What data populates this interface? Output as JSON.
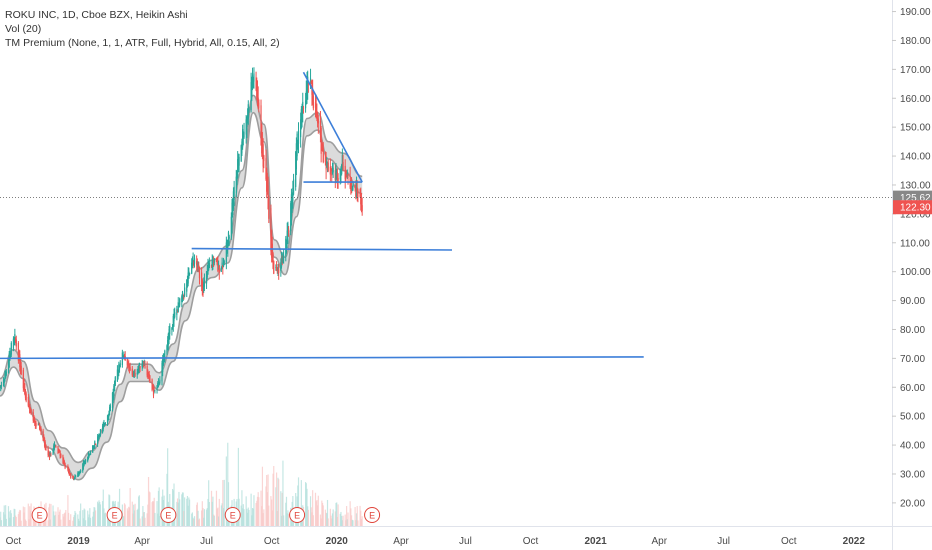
{
  "legend": {
    "line1": "ROKU INC, 1D, Cboe BZX, Heikin Ashi",
    "line2": "Vol (20)",
    "line3": "TM Premium (None, 1, 1, ATR, Full, Hybrid, All, 0.15, All, 2)"
  },
  "colors": {
    "up": "#26a69a",
    "down": "#ef5350",
    "trendline": "#3d7fd9",
    "band": "#9e9e9e",
    "price_tag_gray": "#888888",
    "price_tag_red": "#ef5350",
    "earnings": "#e0453b"
  },
  "earnings_marker": "E",
  "chart_data": {
    "type": "candlestick",
    "price_axis": {
      "ylim": [
        12,
        194
      ],
      "ticks": [
        20,
        30,
        40,
        50,
        60,
        70,
        80,
        90,
        100,
        110,
        120,
        130,
        140,
        150,
        160,
        170,
        180,
        190
      ],
      "tick_labels": [
        "20.00",
        "30.00",
        "40.00",
        "50.00",
        "60.00",
        "70.00",
        "80.00",
        "90.00",
        "100.00",
        "110.00",
        "120.00",
        "130.00",
        "140.00",
        "150.00",
        "160.00",
        "170.00",
        "180.00",
        "190.00"
      ]
    },
    "time_axis": {
      "start": "2018-09-12",
      "end": "2022-02-24",
      "ticks": [
        "2018-10-01",
        "2019-01-01",
        "2019-04-01",
        "2019-07-01",
        "2019-10-01",
        "2020-01-01",
        "2020-04-01",
        "2020-07-01",
        "2020-10-01",
        "2021-01-01",
        "2021-04-01",
        "2021-07-01",
        "2021-10-01",
        "2022-01-01"
      ],
      "tick_labels": [
        "Oct",
        "2019",
        "Apr",
        "Jul",
        "Oct",
        "2020",
        "Apr",
        "Jul",
        "Oct",
        "2021",
        "Apr",
        "Jul",
        "Oct",
        "2022"
      ],
      "bold": [
        false,
        true,
        false,
        false,
        false,
        true,
        false,
        false,
        false,
        true,
        false,
        false,
        false,
        true
      ]
    },
    "price_series": [
      [
        "2018-09-12",
        60
      ],
      [
        "2018-09-20",
        65
      ],
      [
        "2018-09-28",
        74
      ],
      [
        "2018-10-03",
        77
      ],
      [
        "2018-10-10",
        68
      ],
      [
        "2018-10-17",
        58
      ],
      [
        "2018-10-24",
        52
      ],
      [
        "2018-10-31",
        47
      ],
      [
        "2018-11-07",
        46
      ],
      [
        "2018-11-14",
        40
      ],
      [
        "2018-11-21",
        36
      ],
      [
        "2018-11-28",
        40
      ],
      [
        "2018-12-05",
        37
      ],
      [
        "2018-12-12",
        33
      ],
      [
        "2018-12-19",
        30
      ],
      [
        "2018-12-24",
        28
      ],
      [
        "2019-01-02",
        31
      ],
      [
        "2019-01-09",
        34
      ],
      [
        "2019-01-16",
        37
      ],
      [
        "2019-01-23",
        40
      ],
      [
        "2019-01-30",
        44
      ],
      [
        "2019-02-06",
        47
      ],
      [
        "2019-02-13",
        52
      ],
      [
        "2019-02-20",
        60
      ],
      [
        "2019-02-27",
        68
      ],
      [
        "2019-03-06",
        72
      ],
      [
        "2019-03-13",
        66
      ],
      [
        "2019-03-20",
        64
      ],
      [
        "2019-03-27",
        67
      ],
      [
        "2019-04-03",
        69
      ],
      [
        "2019-04-10",
        63
      ],
      [
        "2019-04-17",
        58
      ],
      [
        "2019-04-24",
        61
      ],
      [
        "2019-05-01",
        70
      ],
      [
        "2019-05-08",
        78
      ],
      [
        "2019-05-15",
        84
      ],
      [
        "2019-05-22",
        88
      ],
      [
        "2019-05-29",
        92
      ],
      [
        "2019-06-05",
        98
      ],
      [
        "2019-06-12",
        104
      ],
      [
        "2019-06-19",
        101
      ],
      [
        "2019-06-26",
        94
      ],
      [
        "2019-07-03",
        101
      ],
      [
        "2019-07-10",
        104
      ],
      [
        "2019-07-17",
        101
      ],
      [
        "2019-07-24",
        103
      ],
      [
        "2019-07-31",
        110
      ],
      [
        "2019-08-07",
        125
      ],
      [
        "2019-08-14",
        137
      ],
      [
        "2019-08-21",
        148
      ],
      [
        "2019-08-28",
        155
      ],
      [
        "2019-09-04",
        168
      ],
      [
        "2019-09-11",
        160
      ],
      [
        "2019-09-18",
        140
      ],
      [
        "2019-09-25",
        128
      ],
      [
        "2019-09-30",
        108
      ],
      [
        "2019-10-04",
        100
      ],
      [
        "2019-10-11",
        101
      ],
      [
        "2019-10-18",
        106
      ],
      [
        "2019-10-25",
        116
      ],
      [
        "2019-11-01",
        132
      ],
      [
        "2019-11-08",
        150
      ],
      [
        "2019-11-15",
        157
      ],
      [
        "2019-11-22",
        166
      ],
      [
        "2019-11-27",
        162
      ],
      [
        "2019-12-04",
        152
      ],
      [
        "2019-12-11",
        142
      ],
      [
        "2019-12-18",
        137
      ],
      [
        "2019-12-24",
        135
      ],
      [
        "2020-01-02",
        133
      ],
      [
        "2020-01-09",
        138
      ],
      [
        "2020-01-16",
        132
      ],
      [
        "2020-01-23",
        129
      ],
      [
        "2020-01-30",
        128
      ],
      [
        "2020-02-06",
        122
      ]
    ],
    "band_series": [
      [
        "2018-09-12",
        60
      ],
      [
        "2018-10-01",
        70
      ],
      [
        "2018-10-15",
        66
      ],
      [
        "2018-11-01",
        52
      ],
      [
        "2018-11-20",
        42
      ],
      [
        "2018-12-10",
        36
      ],
      [
        "2019-01-01",
        31
      ],
      [
        "2019-01-20",
        35
      ],
      [
        "2019-02-10",
        44
      ],
      [
        "2019-03-01",
        58
      ],
      [
        "2019-03-15",
        65
      ],
      [
        "2019-04-10",
        65
      ],
      [
        "2019-04-25",
        62
      ],
      [
        "2019-05-15",
        72
      ],
      [
        "2019-06-01",
        86
      ],
      [
        "2019-06-20",
        98
      ],
      [
        "2019-07-10",
        101
      ],
      [
        "2019-07-31",
        106
      ],
      [
        "2019-08-20",
        132
      ],
      [
        "2019-09-05",
        158
      ],
      [
        "2019-09-20",
        148
      ],
      [
        "2019-10-05",
        108
      ],
      [
        "2019-10-20",
        102
      ],
      [
        "2019-11-05",
        122
      ],
      [
        "2019-11-20",
        150
      ],
      [
        "2019-12-05",
        152
      ],
      [
        "2019-12-20",
        142
      ],
      [
        "2020-01-10",
        138
      ],
      [
        "2020-02-06",
        130
      ]
    ],
    "band_width": 3,
    "volume_series": [
      [
        "2018-10-10",
        0.14
      ],
      [
        "2018-11-07",
        0.18
      ],
      [
        "2018-12-10",
        0.12
      ],
      [
        "2019-01-10",
        0.13
      ],
      [
        "2019-02-14",
        0.22
      ],
      [
        "2019-03-10",
        0.16
      ],
      [
        "2019-05-09",
        0.32
      ],
      [
        "2019-06-20",
        0.15
      ],
      [
        "2019-08-07",
        0.38
      ],
      [
        "2019-08-28",
        0.18
      ],
      [
        "2019-10-01",
        0.44
      ],
      [
        "2019-10-18",
        0.28
      ],
      [
        "2019-11-07",
        0.36
      ],
      [
        "2019-12-10",
        0.2
      ],
      [
        "2020-01-15",
        0.17
      ]
    ],
    "volume_scale_max": 1,
    "earnings_dates": [
      "2018-11-07",
      "2019-02-21",
      "2019-05-08",
      "2019-08-07",
      "2019-11-06",
      "2020-02-20"
    ],
    "trendlines": [
      {
        "from": [
          "2018-09-12",
          70
        ],
        "to": [
          "2021-03-10",
          70.5
        ]
      },
      {
        "from": [
          "2019-06-10",
          108
        ],
        "to": [
          "2020-06-12",
          107.5
        ]
      },
      {
        "from": [
          "2019-11-15",
          131
        ],
        "to": [
          "2020-02-06",
          131
        ]
      },
      {
        "from": [
          "2019-11-15",
          169
        ],
        "to": [
          "2020-02-06",
          131
        ]
      }
    ],
    "price_tags": [
      {
        "value": 125.62,
        "label": "125.62",
        "style": "gray"
      },
      {
        "value": 122.3,
        "label": "122.30",
        "style": "red"
      }
    ],
    "dotted_line_value": 125.62
  }
}
